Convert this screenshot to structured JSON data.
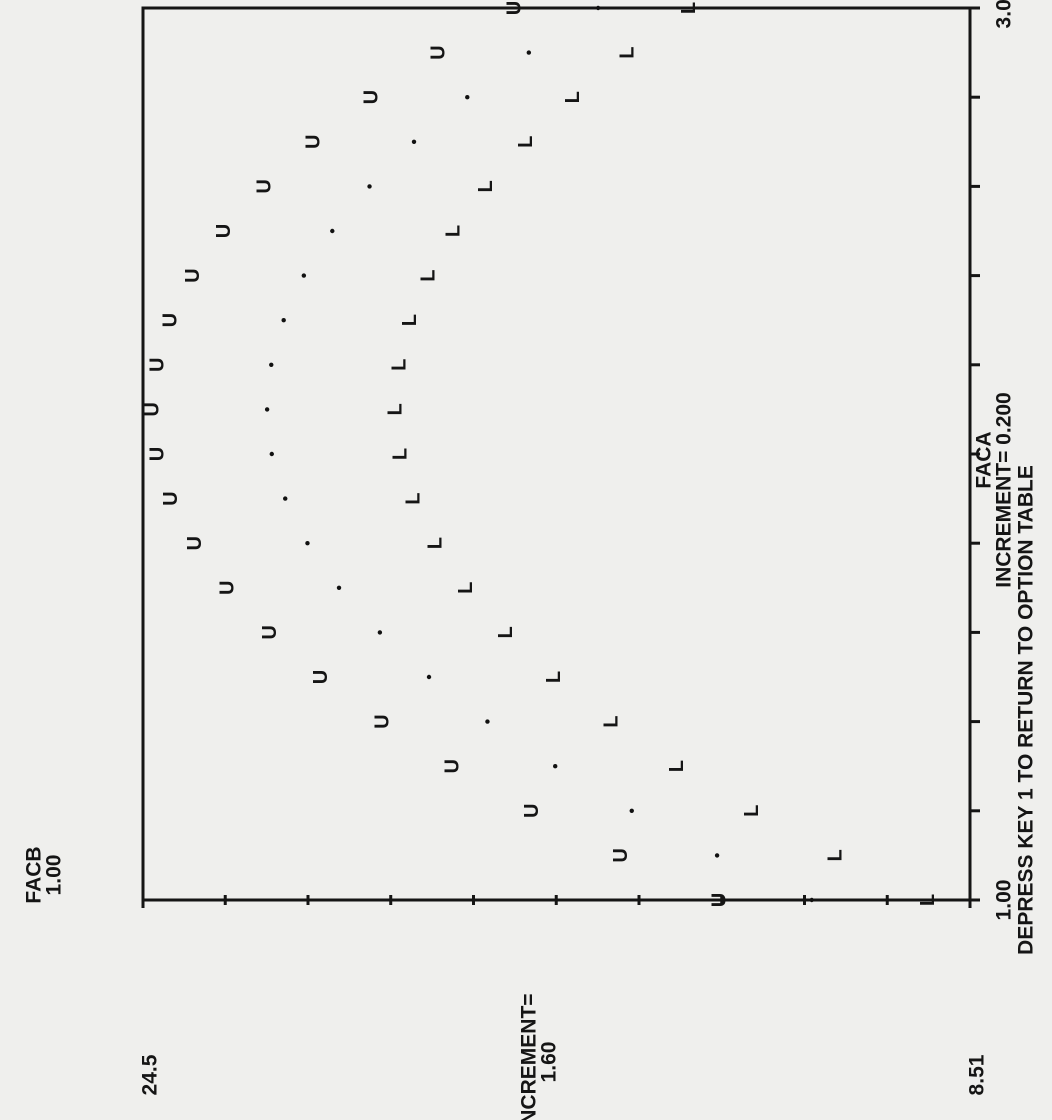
{
  "chart_data": {
    "type": "scatter",
    "xlabel": "FACA",
    "xincrement": "INCREMENT= 0.200",
    "ylabel": "FACB",
    "yparam": "1.00",
    "yincrement_label": "INCREMENT=",
    "yincrement": "1.60",
    "footer": "DEPRESS KEY 1 TO RETURN TO OPTION TABLE",
    "x": [
      1.0,
      1.1,
      1.2,
      1.3,
      1.4,
      1.5,
      1.6,
      1.7,
      1.8,
      1.9,
      2.0,
      2.1,
      2.2,
      2.3,
      2.4,
      2.5,
      2.6,
      2.7,
      2.8,
      2.9,
      3.0
    ],
    "series": [
      {
        "marker": "U",
        "color": "#111111",
        "values": [
          13.34,
          15.24,
          16.96,
          18.5,
          19.86,
          21.04,
          22.03,
          22.85,
          23.48,
          23.94,
          24.21,
          24.3,
          24.21,
          23.95,
          23.52,
          22.92,
          22.14,
          21.19,
          20.07,
          18.77,
          17.3
        ]
      },
      {
        "marker": ".",
        "color": "#111111",
        "values": [
          11.57,
          13.4,
          15.05,
          16.53,
          17.84,
          18.97,
          19.92,
          20.71,
          21.32,
          21.75,
          22.01,
          22.1,
          22.02,
          21.78,
          21.39,
          20.84,
          20.12,
          19.26,
          18.23,
          17.04,
          15.7
        ]
      },
      {
        "marker": "L",
        "color": "#111111",
        "values": [
          9.31,
          11.1,
          12.71,
          14.16,
          15.43,
          16.54,
          17.47,
          18.24,
          18.83,
          19.26,
          19.51,
          19.6,
          19.53,
          19.32,
          18.97,
          18.48,
          17.85,
          17.08,
          16.17,
          15.12,
          13.93
        ]
      }
    ],
    "xlim": [
      1.0,
      3.0
    ],
    "xticks": [
      {
        "value": 1.0,
        "label": "1.00"
      },
      {
        "value": 3.0,
        "label": "3.00"
      }
    ],
    "xminorticks": [
      1.2,
      1.4,
      1.6,
      1.8,
      2.0,
      2.2,
      2.4,
      2.6,
      2.8
    ],
    "ylim": [
      8.51,
      24.5
    ],
    "yticks": [
      8.51,
      24.5
    ],
    "yminorticks": [
      10.11,
      11.71,
      13.31,
      14.91,
      16.51,
      18.11,
      19.71,
      21.31,
      22.91
    ]
  }
}
